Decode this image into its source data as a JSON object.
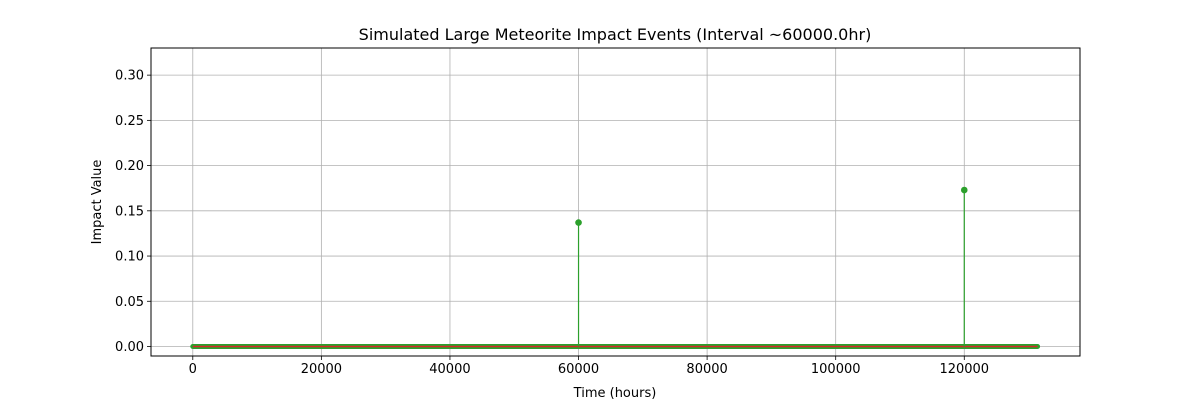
{
  "chart_data": {
    "type": "stem",
    "title": "Simulated Large Meteorite Impact Events (Interval ~60000.0hr)",
    "xlabel": "Time (hours)",
    "ylabel": "Impact Value",
    "xlim": [
      -6500,
      138000
    ],
    "ylim": [
      -0.0105,
      0.33
    ],
    "xticks": [
      0,
      20000,
      40000,
      60000,
      80000,
      100000,
      120000
    ],
    "xtick_labels": [
      "0",
      "20000",
      "40000",
      "60000",
      "80000",
      "100000",
      "120000"
    ],
    "yticks": [
      0.0,
      0.05,
      0.1,
      0.15,
      0.2,
      0.25,
      0.3
    ],
    "ytick_labels": [
      "0.00",
      "0.05",
      "0.10",
      "0.15",
      "0.20",
      "0.25",
      "0.30"
    ],
    "grid": true,
    "baseline": {
      "x_start": 0,
      "x_end": 131400,
      "value": 0,
      "color": "#d62728"
    },
    "stem_color": "#2ca02c",
    "series": [
      {
        "x": [
          0,
          60000,
          120000
        ],
        "values": [
          0.0,
          0.137,
          0.173
        ]
      }
    ]
  }
}
